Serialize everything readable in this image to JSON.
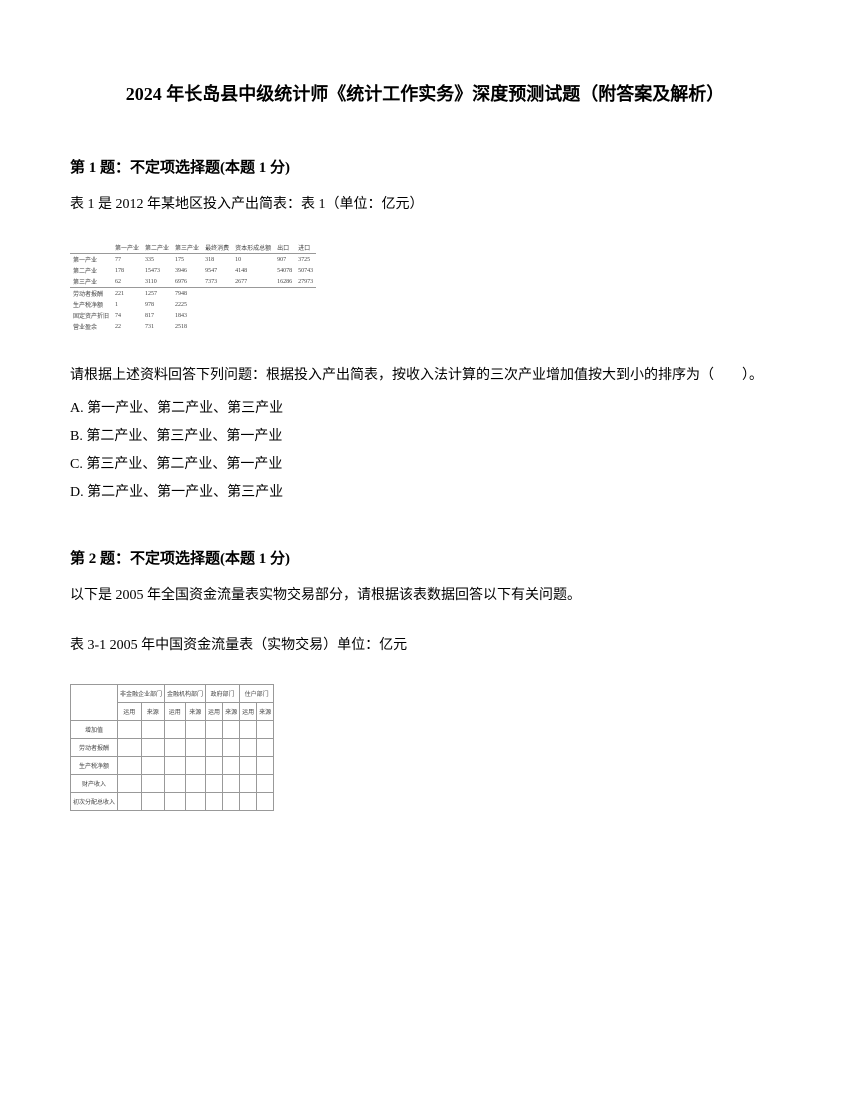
{
  "title": "2024 年长岛县中级统计师《统计工作实务》深度预测试题（附答案及解析）",
  "q1": {
    "header": "第 1 题：不定项选择题(本题 1 分)",
    "intro": "表 1 是 2012 年某地区投入产出简表：表 1（单位：亿元）",
    "table": {
      "headers": [
        "",
        "第一产业",
        "第二产业",
        "第三产业",
        "最终消费",
        "资本形成总额",
        "出口",
        "进口"
      ],
      "rows": [
        [
          "第一产业",
          "77",
          "335",
          "175",
          "318",
          "10",
          "907",
          "3725"
        ],
        [
          "第二产业",
          "178",
          "15473",
          "3946",
          "9547",
          "4148",
          "54078",
          "50743"
        ],
        [
          "第三产业",
          "62",
          "3110",
          "6976",
          "7373",
          "2677",
          "16286",
          "27973"
        ]
      ],
      "rows2": [
        [
          "劳动者报酬",
          "221",
          "1257",
          "7948",
          "",
          "",
          "",
          ""
        ],
        [
          "生产税净额",
          "1",
          "978",
          "2225",
          "",
          "",
          "",
          ""
        ],
        [
          "固定资产折旧",
          "74",
          "817",
          "1843",
          "",
          "",
          "",
          ""
        ],
        [
          "营业盈余",
          "22",
          "731",
          "2518",
          "",
          "",
          "",
          ""
        ]
      ]
    },
    "question": "请根据上述资料回答下列问题：根据投入产出简表，按收入法计算的三次产业增加值按大到小的排序为（　　）。",
    "options": {
      "A": "A. 第一产业、第二产业、第三产业",
      "B": "B. 第二产业、第三产业、第一产业",
      "C": "C. 第三产业、第二产业、第一产业",
      "D": "D. 第二产业、第一产业、第三产业"
    }
  },
  "q2": {
    "header": "第 2 题：不定项选择题(本题 1 分)",
    "intro1": "以下是 2005 年全国资金流量表实物交易部分，请根据该表数据回答以下有关问题。",
    "intro2": "表 3-1 2005 年中国资金流量表（实物交易）单位：亿元",
    "table": {
      "header_row1": [
        "非金融企业部门",
        "金融机构部门",
        "政府部门",
        "住户部门"
      ],
      "header_row2": [
        "运用",
        "来源",
        "运用",
        "来源",
        "运用",
        "来源",
        "运用",
        "来源"
      ],
      "rows": [
        [
          "增加值",
          "",
          "",
          "",
          "",
          "",
          "",
          "",
          ""
        ],
        [
          "劳动者报酬",
          "",
          "",
          "",
          "",
          "",
          "",
          "",
          ""
        ],
        [
          "生产税净额",
          "",
          "",
          "",
          "",
          "",
          "",
          "",
          ""
        ],
        [
          "财产收入",
          "",
          "",
          "",
          "",
          "",
          "",
          "",
          ""
        ],
        [
          "初次分配总收入",
          "",
          "",
          "",
          "",
          "",
          "",
          "",
          ""
        ]
      ]
    }
  }
}
